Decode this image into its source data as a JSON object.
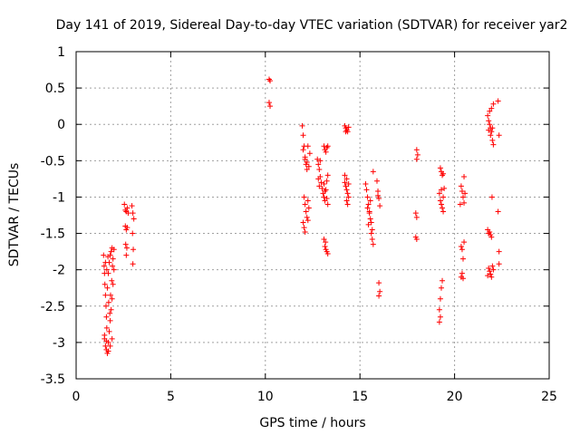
{
  "chart_data": {
    "type": "scatter",
    "title": "Day 141 of 2019, Sidereal Day-to-day VTEC variation (SDTVAR) for receiver yar2",
    "xlabel": "GPS time / hours",
    "ylabel": "SDTVAR / TECUs",
    "xlim": [
      0,
      25
    ],
    "ylim": [
      -3.5,
      1
    ],
    "xticks": [
      0,
      5,
      10,
      15,
      20,
      25
    ],
    "xtick_labels": [
      "0",
      "5",
      "10",
      "15",
      "20",
      "25"
    ],
    "yticks": [
      1,
      0.5,
      0,
      -0.5,
      -1,
      -1.5,
      -2,
      -2.5,
      -3,
      -3.5
    ],
    "ytick_labels": [
      "1",
      "0.5",
      "0",
      "-0.5",
      "-1",
      "-1.5",
      "-2",
      "-2.5",
      "-3",
      "-3.5"
    ],
    "grid": true,
    "marker": "+",
    "marker_color": "#ff0000",
    "series": [
      {
        "name": "SDTVAR",
        "points": [
          [
            1.45,
            -1.8
          ],
          [
            1.48,
            -1.95
          ],
          [
            1.5,
            -2.05
          ],
          [
            1.52,
            -2.2
          ],
          [
            1.55,
            -2.35
          ],
          [
            1.58,
            -2.5
          ],
          [
            1.6,
            -2.65
          ],
          [
            1.62,
            -2.8
          ],
          [
            1.5,
            -2.95
          ],
          [
            1.55,
            -3.05
          ],
          [
            1.6,
            -3.1
          ],
          [
            1.65,
            -3.15
          ],
          [
            1.7,
            -3.0
          ],
          [
            1.75,
            -2.85
          ],
          [
            1.8,
            -2.7
          ],
          [
            1.85,
            -2.55
          ],
          [
            1.9,
            -2.4
          ],
          [
            1.95,
            -2.2
          ],
          [
            1.7,
            -2.05
          ],
          [
            1.75,
            -1.9
          ],
          [
            1.8,
            -1.8
          ],
          [
            1.85,
            -1.75
          ],
          [
            1.9,
            -1.7
          ],
          [
            1.95,
            -1.85
          ],
          [
            2.0,
            -2.0
          ],
          [
            1.65,
            -2.25
          ],
          [
            1.72,
            -2.45
          ],
          [
            1.78,
            -2.6
          ],
          [
            1.82,
            -2.35
          ],
          [
            1.88,
            -2.15
          ],
          [
            1.5,
            -2.9
          ],
          [
            1.6,
            -2.98
          ],
          [
            1.7,
            -3.12
          ],
          [
            1.8,
            -3.05
          ],
          [
            1.9,
            -2.95
          ],
          [
            1.55,
            -1.9
          ],
          [
            1.62,
            -2.0
          ],
          [
            1.68,
            -1.82
          ],
          [
            1.92,
            -1.95
          ],
          [
            2.0,
            -1.72
          ],
          [
            2.55,
            -1.1
          ],
          [
            2.6,
            -1.18
          ],
          [
            2.65,
            -1.2
          ],
          [
            2.7,
            -1.15
          ],
          [
            2.75,
            -1.22
          ],
          [
            2.6,
            -1.4
          ],
          [
            2.65,
            -1.45
          ],
          [
            2.7,
            -1.42
          ],
          [
            2.62,
            -1.65
          ],
          [
            2.68,
            -1.7
          ],
          [
            2.65,
            -1.8
          ],
          [
            2.95,
            -1.12
          ],
          [
            3.0,
            -1.22
          ],
          [
            3.05,
            -1.3
          ],
          [
            2.98,
            -1.5
          ],
          [
            3.02,
            -1.72
          ],
          [
            3.0,
            -1.92
          ],
          [
            10.2,
            0.62
          ],
          [
            10.25,
            0.6
          ],
          [
            10.2,
            0.3
          ],
          [
            10.25,
            0.25
          ],
          [
            11.95,
            -0.02
          ],
          [
            12.0,
            -0.15
          ],
          [
            12.05,
            -0.3
          ],
          [
            12.1,
            -0.45
          ],
          [
            12.15,
            -0.55
          ],
          [
            12.2,
            -0.62
          ],
          [
            12.0,
            -0.35
          ],
          [
            12.1,
            -0.48
          ],
          [
            12.2,
            -0.52
          ],
          [
            12.3,
            -0.58
          ],
          [
            12.35,
            -0.4
          ],
          [
            12.25,
            -0.3
          ],
          [
            12.05,
            -1.0
          ],
          [
            12.1,
            -1.1
          ],
          [
            12.15,
            -1.2
          ],
          [
            12.2,
            -1.28
          ],
          [
            12.25,
            -1.05
          ],
          [
            12.3,
            -1.15
          ],
          [
            12.0,
            -1.35
          ],
          [
            12.05,
            -1.42
          ],
          [
            12.1,
            -1.48
          ],
          [
            12.25,
            -1.32
          ],
          [
            12.75,
            -0.48
          ],
          [
            12.8,
            -0.55
          ],
          [
            12.85,
            -0.62
          ],
          [
            12.9,
            -0.72
          ],
          [
            12.95,
            -0.8
          ],
          [
            13.0,
            -0.88
          ],
          [
            12.8,
            -0.75
          ],
          [
            12.85,
            -0.85
          ],
          [
            12.9,
            -0.5
          ],
          [
            13.05,
            -0.95
          ],
          [
            13.1,
            -1.0
          ],
          [
            13.15,
            -1.05
          ],
          [
            13.2,
            -0.9
          ],
          [
            13.25,
            -0.78
          ],
          [
            13.3,
            -0.7
          ],
          [
            13.1,
            -0.82
          ],
          [
            13.15,
            -0.92
          ],
          [
            13.25,
            -1.02
          ],
          [
            13.3,
            -1.1
          ],
          [
            13.1,
            -0.3
          ],
          [
            13.15,
            -0.35
          ],
          [
            13.2,
            -0.38
          ],
          [
            13.25,
            -0.32
          ],
          [
            13.3,
            -0.3
          ],
          [
            13.1,
            -1.58
          ],
          [
            13.15,
            -1.68
          ],
          [
            13.2,
            -1.72
          ],
          [
            13.25,
            -1.75
          ],
          [
            13.3,
            -1.78
          ],
          [
            13.18,
            -1.62
          ],
          [
            14.2,
            -0.02
          ],
          [
            14.25,
            -0.05
          ],
          [
            14.3,
            -0.08
          ],
          [
            14.35,
            -0.1
          ],
          [
            14.4,
            -0.04
          ],
          [
            14.25,
            -0.1
          ],
          [
            14.2,
            -0.8
          ],
          [
            14.25,
            -0.85
          ],
          [
            14.3,
            -0.9
          ],
          [
            14.35,
            -0.95
          ],
          [
            14.4,
            -1.0
          ],
          [
            14.3,
            -1.05
          ],
          [
            14.35,
            -1.1
          ],
          [
            14.2,
            -0.7
          ],
          [
            14.3,
            -0.75
          ],
          [
            14.4,
            -0.82
          ],
          [
            15.3,
            -0.82
          ],
          [
            15.35,
            -0.9
          ],
          [
            15.4,
            -1.0
          ],
          [
            15.45,
            -1.1
          ],
          [
            15.5,
            -1.2
          ],
          [
            15.55,
            -1.3
          ],
          [
            15.6,
            -1.35
          ],
          [
            15.65,
            -1.45
          ],
          [
            15.4,
            -1.15
          ],
          [
            15.5,
            -1.22
          ],
          [
            15.6,
            -1.5
          ],
          [
            15.65,
            -1.58
          ],
          [
            15.7,
            -1.65
          ],
          [
            15.55,
            -1.05
          ],
          [
            15.7,
            -0.65
          ],
          [
            15.45,
            -1.38
          ],
          [
            15.9,
            -0.78
          ],
          [
            15.95,
            -0.92
          ],
          [
            16.0,
            -1.02
          ],
          [
            16.05,
            -1.12
          ],
          [
            15.95,
            -0.98
          ],
          [
            16.0,
            -2.18
          ],
          [
            16.05,
            -2.3
          ],
          [
            16.0,
            -2.36
          ],
          [
            18.0,
            -0.35
          ],
          [
            18.05,
            -0.42
          ],
          [
            18.0,
            -0.48
          ],
          [
            17.95,
            -1.22
          ],
          [
            18.0,
            -1.28
          ],
          [
            17.95,
            -1.55
          ],
          [
            18.0,
            -1.58
          ],
          [
            19.25,
            -0.6
          ],
          [
            19.3,
            -0.65
          ],
          [
            19.35,
            -0.7
          ],
          [
            19.4,
            -0.68
          ],
          [
            19.2,
            -0.95
          ],
          [
            19.25,
            -1.05
          ],
          [
            19.3,
            -1.1
          ],
          [
            19.35,
            -1.15
          ],
          [
            19.4,
            -1.2
          ],
          [
            19.3,
            -0.9
          ],
          [
            19.4,
            -1.0
          ],
          [
            19.45,
            -0.88
          ],
          [
            19.35,
            -2.15
          ],
          [
            19.3,
            -2.25
          ],
          [
            19.25,
            -2.4
          ],
          [
            19.2,
            -2.55
          ],
          [
            19.25,
            -2.65
          ],
          [
            19.2,
            -2.72
          ],
          [
            20.35,
            -0.85
          ],
          [
            20.4,
            -0.92
          ],
          [
            20.45,
            -1.0
          ],
          [
            20.5,
            -1.08
          ],
          [
            20.55,
            -0.95
          ],
          [
            20.5,
            -0.72
          ],
          [
            20.3,
            -1.1
          ],
          [
            20.35,
            -1.68
          ],
          [
            20.4,
            -1.72
          ],
          [
            20.5,
            -1.62
          ],
          [
            20.45,
            -1.85
          ],
          [
            20.4,
            -2.05
          ],
          [
            20.35,
            -2.1
          ],
          [
            20.45,
            -2.12
          ],
          [
            21.75,
            0.12
          ],
          [
            21.8,
            0.05
          ],
          [
            21.85,
            0.0
          ],
          [
            21.9,
            -0.05
          ],
          [
            21.95,
            -0.1
          ],
          [
            21.8,
            -0.08
          ],
          [
            21.9,
            -0.15
          ],
          [
            22.0,
            -0.22
          ],
          [
            22.05,
            -0.28
          ],
          [
            21.85,
            0.18
          ],
          [
            21.95,
            0.22
          ],
          [
            22.05,
            0.28
          ],
          [
            22.0,
            -0.05
          ],
          [
            21.75,
            -1.45
          ],
          [
            21.8,
            -1.5
          ],
          [
            21.85,
            -1.48
          ],
          [
            21.9,
            -1.52
          ],
          [
            21.95,
            -1.55
          ],
          [
            21.8,
            -1.98
          ],
          [
            21.85,
            -2.02
          ],
          [
            21.9,
            -2.06
          ],
          [
            21.95,
            -2.1
          ],
          [
            22.0,
            -1.95
          ],
          [
            22.05,
            -2.0
          ],
          [
            21.75,
            -2.08
          ],
          [
            21.98,
            -1.0
          ],
          [
            22.3,
            0.32
          ],
          [
            22.35,
            -0.15
          ],
          [
            22.3,
            -1.2
          ],
          [
            22.35,
            -1.75
          ],
          [
            22.35,
            -1.92
          ]
        ]
      }
    ]
  }
}
